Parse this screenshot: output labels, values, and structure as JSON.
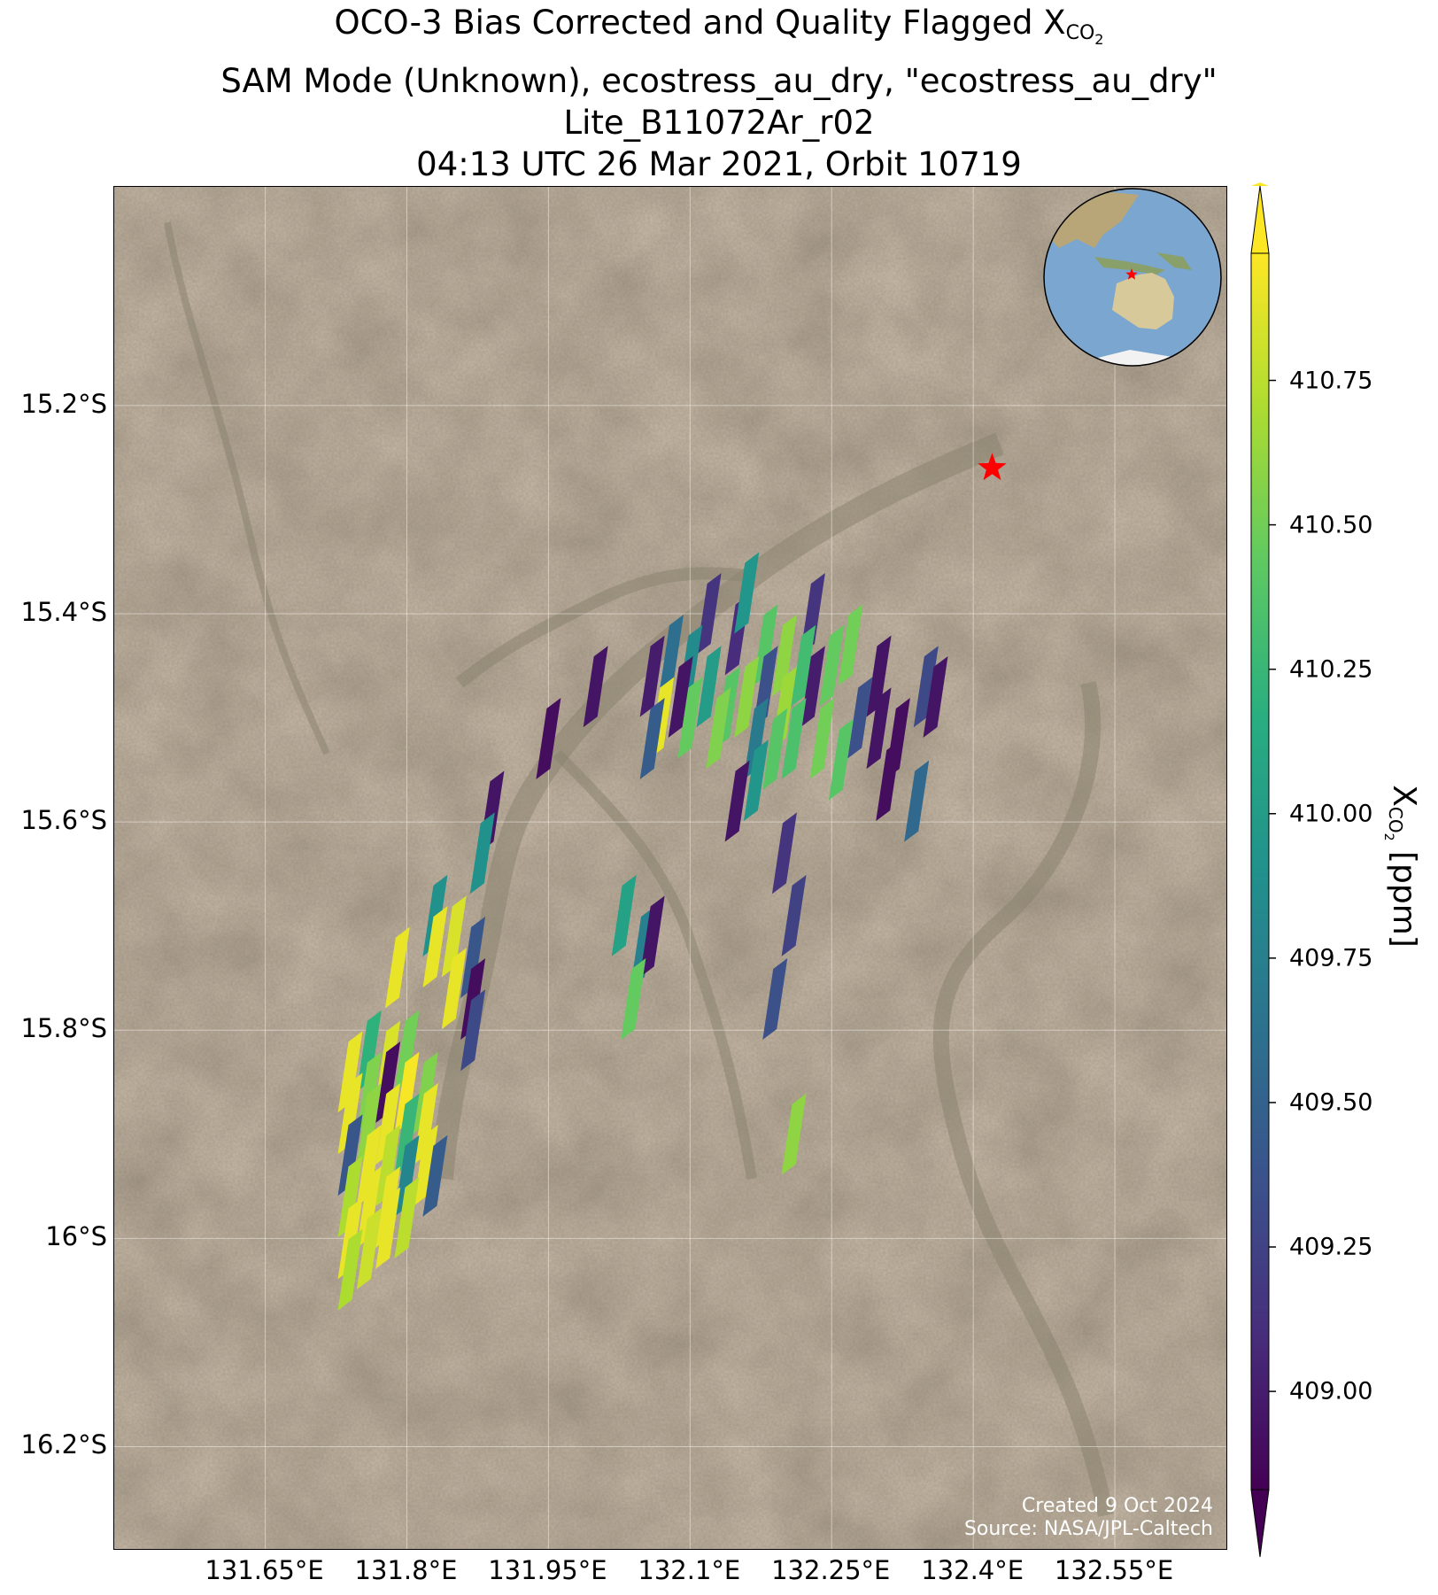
{
  "title": {
    "line1_prefix": "OCO-3 Bias Corrected and Quality Flagged X",
    "line1_sub": "CO",
    "line1_subsub": "2",
    "line2": "SAM Mode (Unknown), ecostress_au_dry, \"ecostress_au_dry\"",
    "line3": "Lite_B11072Ar_r02",
    "line4": "04:13 UTC 26 Mar 2021, Orbit 10719"
  },
  "credit": {
    "created": "Created 9 Oct 2024",
    "source": "Source: NASA/JPL-Caltech"
  },
  "colorbar": {
    "label_prefix": "X",
    "label_sub": "CO",
    "label_subsub": "2",
    "label_suffix": " [ppm]",
    "colormap": "viridis",
    "range": [
      408.83,
      410.97
    ],
    "ticks": [
      {
        "value": 410.75,
        "label": "410.75"
      },
      {
        "value": 410.5,
        "label": "410.50"
      },
      {
        "value": 410.25,
        "label": "410.25"
      },
      {
        "value": 410.0,
        "label": "410.00"
      },
      {
        "value": 409.75,
        "label": "409.75"
      },
      {
        "value": 409.5,
        "label": "409.50"
      },
      {
        "value": 409.25,
        "label": "409.25"
      },
      {
        "value": 409.0,
        "label": "409.00"
      }
    ],
    "extend": "both"
  },
  "chart_data": {
    "type": "map",
    "projection": "PlateCarree",
    "basemap": "satellite imagery",
    "grid": true,
    "lon_range": [
      131.49,
      132.67
    ],
    "lat_range": [
      -16.3,
      -14.99
    ],
    "lat_ticks": [
      {
        "value": -15.2,
        "label": "15.2°S"
      },
      {
        "value": -15.4,
        "label": "15.4°S"
      },
      {
        "value": -15.6,
        "label": "15.6°S"
      },
      {
        "value": -15.8,
        "label": "15.8°S"
      },
      {
        "value": -16.0,
        "label": "16°S"
      },
      {
        "value": -16.2,
        "label": "16.2°S"
      }
    ],
    "lon_ticks": [
      {
        "value": 131.65,
        "label": "131.65°E"
      },
      {
        "value": 131.8,
        "label": "131.8°E"
      },
      {
        "value": 131.95,
        "label": "131.95°E"
      },
      {
        "value": 132.1,
        "label": "132.1°E"
      },
      {
        "value": 132.25,
        "label": "132.25°E"
      },
      {
        "value": 132.4,
        "label": "132.4°E"
      },
      {
        "value": 132.55,
        "label": "132.55°E"
      }
    ],
    "target": {
      "lon": 132.42,
      "lat": -15.26,
      "marker": "red-star"
    },
    "soundings": [
      {
        "lon": 132.12,
        "lat": -15.4,
        "xco2": 409.15
      },
      {
        "lon": 132.15,
        "lat": -15.42,
        "xco2": 409.1
      },
      {
        "lon": 132.16,
        "lat": -15.38,
        "xco2": 409.95
      },
      {
        "lon": 132.18,
        "lat": -15.43,
        "xco2": 410.4
      },
      {
        "lon": 132.2,
        "lat": -15.44,
        "xco2": 410.6
      },
      {
        "lon": 132.23,
        "lat": -15.4,
        "xco2": 409.15
      },
      {
        "lon": 132.22,
        "lat": -15.45,
        "xco2": 410.3
      },
      {
        "lon": 132.1,
        "lat": -15.45,
        "xco2": 409.85
      },
      {
        "lon": 132.08,
        "lat": -15.44,
        "xco2": 409.6
      },
      {
        "lon": 132.06,
        "lat": -15.46,
        "xco2": 409.0
      },
      {
        "lon": 132.09,
        "lat": -15.48,
        "xco2": 408.95
      },
      {
        "lon": 132.12,
        "lat": -15.47,
        "xco2": 410.0
      },
      {
        "lon": 132.14,
        "lat": -15.49,
        "xco2": 410.4
      },
      {
        "lon": 132.16,
        "lat": -15.48,
        "xco2": 410.6
      },
      {
        "lon": 132.18,
        "lat": -15.47,
        "xco2": 409.35
      },
      {
        "lon": 132.2,
        "lat": -15.49,
        "xco2": 410.65
      },
      {
        "lon": 132.23,
        "lat": -15.47,
        "xco2": 409.0
      },
      {
        "lon": 132.25,
        "lat": -15.45,
        "xco2": 410.45
      },
      {
        "lon": 132.27,
        "lat": -15.43,
        "xco2": 410.5
      },
      {
        "lon": 132.3,
        "lat": -15.46,
        "xco2": 408.95
      },
      {
        "lon": 132.07,
        "lat": -15.5,
        "xco2": 410.9
      },
      {
        "lon": 132.06,
        "lat": -15.52,
        "xco2": 409.45
      },
      {
        "lon": 132.1,
        "lat": -15.5,
        "xco2": 410.45
      },
      {
        "lon": 132.13,
        "lat": -15.51,
        "xco2": 410.55
      },
      {
        "lon": 132.17,
        "lat": -15.52,
        "xco2": 409.7
      },
      {
        "lon": 132.19,
        "lat": -15.53,
        "xco2": 410.4
      },
      {
        "lon": 132.21,
        "lat": -15.52,
        "xco2": 410.35
      },
      {
        "lon": 132.24,
        "lat": -15.52,
        "xco2": 410.5
      },
      {
        "lon": 132.28,
        "lat": -15.5,
        "xco2": 409.35
      },
      {
        "lon": 132.3,
        "lat": -15.51,
        "xco2": 408.95
      },
      {
        "lon": 132.32,
        "lat": -15.52,
        "xco2": 408.9
      },
      {
        "lon": 132.35,
        "lat": -15.47,
        "xco2": 409.3
      },
      {
        "lon": 132.36,
        "lat": -15.48,
        "xco2": 408.95
      },
      {
        "lon": 132.0,
        "lat": -15.47,
        "xco2": 408.95
      },
      {
        "lon": 131.95,
        "lat": -15.52,
        "xco2": 408.9
      },
      {
        "lon": 132.26,
        "lat": -15.54,
        "xco2": 410.4
      },
      {
        "lon": 132.31,
        "lat": -15.56,
        "xco2": 408.9
      },
      {
        "lon": 132.17,
        "lat": -15.56,
        "xco2": 409.95
      },
      {
        "lon": 132.15,
        "lat": -15.58,
        "xco2": 408.95
      },
      {
        "lon": 132.34,
        "lat": -15.58,
        "xco2": 409.55
      },
      {
        "lon": 131.89,
        "lat": -15.59,
        "xco2": 408.95
      },
      {
        "lon": 131.88,
        "lat": -15.63,
        "xco2": 409.9
      },
      {
        "lon": 132.2,
        "lat": -15.63,
        "xco2": 409.15
      },
      {
        "lon": 132.21,
        "lat": -15.69,
        "xco2": 409.25
      },
      {
        "lon": 132.03,
        "lat": -15.69,
        "xco2": 410.05
      },
      {
        "lon": 132.05,
        "lat": -15.72,
        "xco2": 409.75
      },
      {
        "lon": 132.06,
        "lat": -15.71,
        "xco2": 408.95
      },
      {
        "lon": 132.04,
        "lat": -15.77,
        "xco2": 410.45
      },
      {
        "lon": 132.19,
        "lat": -15.77,
        "xco2": 409.35
      },
      {
        "lon": 132.21,
        "lat": -15.9,
        "xco2": 410.6
      },
      {
        "lon": 131.83,
        "lat": -15.69,
        "xco2": 409.9
      },
      {
        "lon": 131.85,
        "lat": -15.71,
        "xco2": 410.85
      },
      {
        "lon": 131.83,
        "lat": -15.72,
        "xco2": 410.9
      },
      {
        "lon": 131.87,
        "lat": -15.73,
        "xco2": 409.4
      },
      {
        "lon": 131.85,
        "lat": -15.76,
        "xco2": 410.9
      },
      {
        "lon": 131.87,
        "lat": -15.77,
        "xco2": 408.9
      },
      {
        "lon": 131.87,
        "lat": -15.8,
        "xco2": 409.3
      },
      {
        "lon": 131.79,
        "lat": -15.74,
        "xco2": 410.9
      },
      {
        "lon": 131.76,
        "lat": -15.82,
        "xco2": 410.2
      },
      {
        "lon": 131.78,
        "lat": -15.83,
        "xco2": 410.85
      },
      {
        "lon": 131.8,
        "lat": -15.82,
        "xco2": 410.5
      },
      {
        "lon": 131.74,
        "lat": -15.84,
        "xco2": 410.9
      },
      {
        "lon": 131.76,
        "lat": -15.86,
        "xco2": 410.55
      },
      {
        "lon": 131.78,
        "lat": -15.85,
        "xco2": 408.9
      },
      {
        "lon": 131.8,
        "lat": -15.86,
        "xco2": 410.95
      },
      {
        "lon": 131.82,
        "lat": -15.86,
        "xco2": 410.55
      },
      {
        "lon": 131.74,
        "lat": -15.88,
        "xco2": 410.9
      },
      {
        "lon": 131.76,
        "lat": -15.89,
        "xco2": 410.6
      },
      {
        "lon": 131.78,
        "lat": -15.89,
        "xco2": 410.9
      },
      {
        "lon": 131.8,
        "lat": -15.9,
        "xco2": 410.25
      },
      {
        "lon": 131.82,
        "lat": -15.89,
        "xco2": 410.9
      },
      {
        "lon": 131.74,
        "lat": -15.92,
        "xco2": 409.4
      },
      {
        "lon": 131.76,
        "lat": -15.93,
        "xco2": 410.9
      },
      {
        "lon": 131.78,
        "lat": -15.93,
        "xco2": 410.75
      },
      {
        "lon": 131.8,
        "lat": -15.94,
        "xco2": 409.8
      },
      {
        "lon": 131.82,
        "lat": -15.93,
        "xco2": 410.9
      },
      {
        "lon": 131.83,
        "lat": -15.94,
        "xco2": 409.45
      },
      {
        "lon": 131.74,
        "lat": -15.96,
        "xco2": 410.7
      },
      {
        "lon": 131.76,
        "lat": -15.97,
        "xco2": 410.9
      },
      {
        "lon": 131.78,
        "lat": -15.97,
        "xco2": 410.9
      },
      {
        "lon": 131.8,
        "lat": -15.98,
        "xco2": 410.75
      },
      {
        "lon": 131.74,
        "lat": -16.0,
        "xco2": 410.9
      },
      {
        "lon": 131.76,
        "lat": -16.01,
        "xco2": 410.8
      },
      {
        "lon": 131.78,
        "lat": -15.99,
        "xco2": 410.9
      },
      {
        "lon": 131.74,
        "lat": -16.03,
        "xco2": 410.7
      }
    ]
  },
  "inset": {
    "type": "orthographic globe",
    "target_marker": "red-star"
  }
}
